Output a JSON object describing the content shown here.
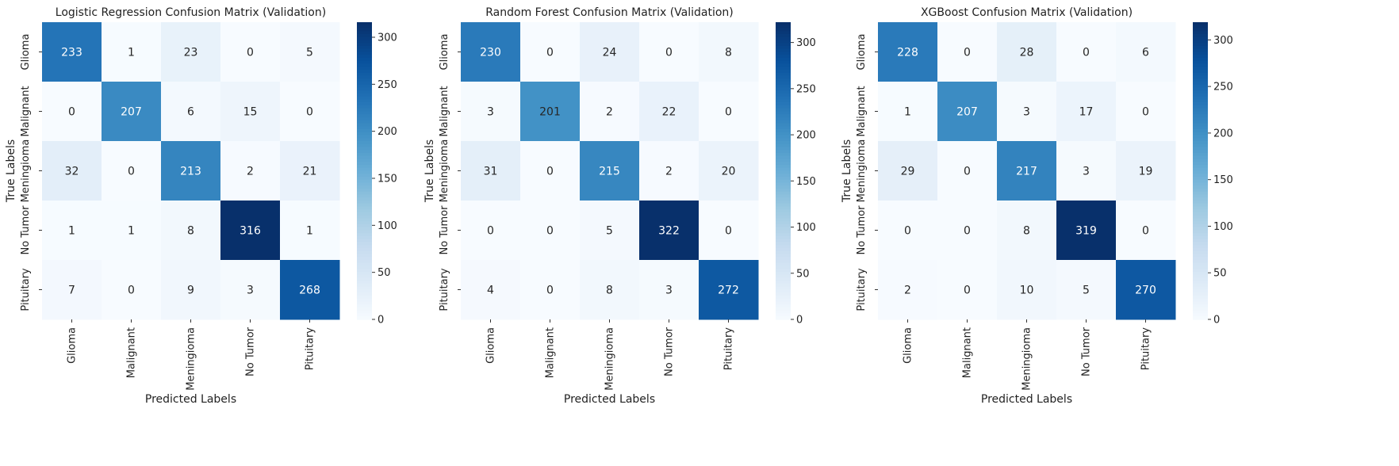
{
  "chart_data": [
    {
      "type": "heatmap",
      "title": "Logistic Regression Confusion Matrix (Validation)",
      "xlabel": "Predicted Labels",
      "ylabel": "True Labels",
      "x_categories": [
        "Glioma",
        "Malignant",
        "Meningioma",
        "No Tumor",
        "Pituitary"
      ],
      "y_categories": [
        "Glioma",
        "Malignant",
        "Meningioma",
        "No Tumor",
        "Pituitary"
      ],
      "values": [
        [
          233,
          1,
          23,
          0,
          5
        ],
        [
          0,
          207,
          6,
          15,
          0
        ],
        [
          32,
          0,
          213,
          2,
          21
        ],
        [
          1,
          1,
          8,
          316,
          1
        ],
        [
          7,
          0,
          9,
          3,
          268
        ]
      ],
      "colormap": "Blues",
      "vmin": 0,
      "vmax": 316,
      "colorbar_ticks": [
        0,
        50,
        100,
        150,
        200,
        250,
        300
      ]
    },
    {
      "type": "heatmap",
      "title": "Random Forest Confusion Matrix (Validation)",
      "xlabel": "Predicted Labels",
      "ylabel": "True Labels",
      "x_categories": [
        "Glioma",
        "Malignant",
        "Meningioma",
        "No Tumor",
        "Pituitary"
      ],
      "y_categories": [
        "Glioma",
        "Malignant",
        "Meningioma",
        "No Tumor",
        "Pituitary"
      ],
      "values": [
        [
          230,
          0,
          24,
          0,
          8
        ],
        [
          3,
          201,
          2,
          22,
          0
        ],
        [
          31,
          0,
          215,
          2,
          20
        ],
        [
          0,
          0,
          5,
          322,
          0
        ],
        [
          4,
          0,
          8,
          3,
          272
        ]
      ],
      "colormap": "Blues",
      "vmin": 0,
      "vmax": 322,
      "colorbar_ticks": [
        0,
        50,
        100,
        150,
        200,
        250,
        300
      ]
    },
    {
      "type": "heatmap",
      "title": "XGBoost Confusion Matrix (Validation)",
      "xlabel": "Predicted Labels",
      "ylabel": "True Labels",
      "x_categories": [
        "Glioma",
        "Malignant",
        "Meningioma",
        "No Tumor",
        "Pituitary"
      ],
      "y_categories": [
        "Glioma",
        "Malignant",
        "Meningioma",
        "No Tumor",
        "Pituitary"
      ],
      "values": [
        [
          228,
          0,
          28,
          0,
          6
        ],
        [
          1,
          207,
          3,
          17,
          0
        ],
        [
          29,
          0,
          217,
          3,
          19
        ],
        [
          0,
          0,
          8,
          319,
          0
        ],
        [
          2,
          0,
          10,
          5,
          270
        ]
      ],
      "colormap": "Blues",
      "vmin": 0,
      "vmax": 319,
      "colorbar_ticks": [
        0,
        50,
        100,
        150,
        200,
        250,
        300
      ]
    }
  ]
}
